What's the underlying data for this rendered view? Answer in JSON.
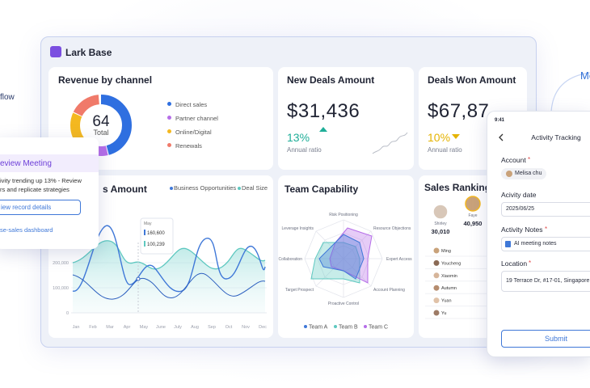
{
  "side_texts": {
    "left": "flow",
    "right": "Mo"
  },
  "app": {
    "title": "Lark Base"
  },
  "revenue": {
    "title": "Revenue by channel",
    "total": "64",
    "total_label": "Total",
    "legend": [
      "Direct sales",
      "Partner channel",
      "Online/Digital",
      "Renewals"
    ]
  },
  "new_deals": {
    "title": "New Deals Amount",
    "amount": "$31,436",
    "ratio": "13%",
    "ratio_label": "Annual ratio"
  },
  "deals_won": {
    "title": "Deals Won Amount",
    "amount": "$67,87",
    "ratio": "10%",
    "ratio_label": "Annual ratio"
  },
  "amount_chart": {
    "title": "s Amount",
    "legend": [
      "Business Opportunities",
      "Deal Size"
    ],
    "yticks": [
      "200,000",
      "100,000",
      "0"
    ],
    "months": [
      "Jan",
      "Feb",
      "Mar",
      "Apr",
      "May",
      "June",
      "July",
      "Aug",
      "Sep",
      "Oct",
      "Nov",
      "Dec"
    ],
    "tooltip": {
      "month": "May",
      "values": [
        "160,600",
        "100,239"
      ]
    }
  },
  "team": {
    "title": "Team Capability",
    "axes": [
      "Risk Positioning",
      "Resource Objections",
      "Expert Access",
      "Account Planning",
      "Proactive Control",
      "Target Prospect",
      "Collaboration",
      "Leverage Insights"
    ],
    "legend": [
      "Team A",
      "Team B",
      "Team C"
    ]
  },
  "ranking": {
    "title": "Sales Ranking",
    "top": [
      {
        "name": "Shirley",
        "score": "30,010"
      },
      {
        "name": "Faye",
        "score": "40,950"
      }
    ],
    "list": [
      "Ming",
      "Youcheng",
      "Xiaomin",
      "Autumn",
      "Yuan",
      "Yu"
    ]
  },
  "review": {
    "title": "eview Meeting",
    "lines": [
      "ivity trending up 13% - Review",
      "rs and replicate strategies"
    ],
    "button": "iew record details",
    "link": "se-sales dashboard"
  },
  "phone": {
    "time": "9:41",
    "title": "Activity Tracking",
    "fields": [
      {
        "label": "Account",
        "mark": "*",
        "value": "Melisa chu"
      },
      {
        "label": "Acivity date",
        "value": "2025/06/25"
      },
      {
        "label": "Activity Notes",
        "mark": "*",
        "value": "AI meeting notes"
      },
      {
        "label": "Location",
        "mark": "*",
        "value": "19 Terrace Dr, #17-01, Singapore 198"
      }
    ],
    "submit": "Submit"
  }
}
